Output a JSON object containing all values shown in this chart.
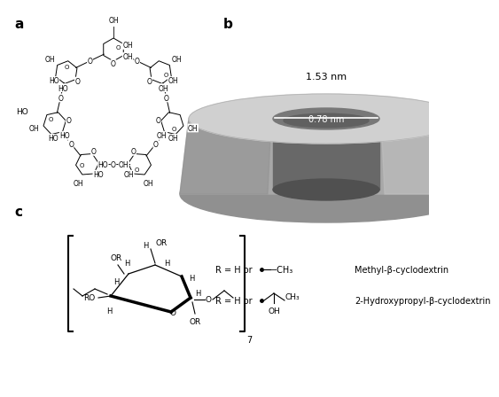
{
  "panel_a_label": "a",
  "panel_b_label": "b",
  "panel_c_label": "c",
  "outer_diameter_label": "1.53 nm",
  "inner_diameter_label": "0.78 nm",
  "methyl_label": "Methyl-β-cyclodextrin",
  "hydroxypropyl_label": "2-Hydroxypropyl-β-cyclodextrin",
  "r_eq1": "R = H or",
  "r_eq2": "R = H or",
  "ch3_label": "−CH₃",
  "ch3_label2": "CH₃",
  "oh_label": "OH",
  "subscript_7": "7",
  "bg_color": "#ffffff",
  "line_color": "#000000",
  "cone_body": "#a8a8a8",
  "cone_top_ring": "#c8c8c8",
  "cone_inner_dark": "#686868",
  "cone_highlight": "#bcbcbc",
  "cone_shadow": "#888888",
  "cone_bottom": "#909090"
}
